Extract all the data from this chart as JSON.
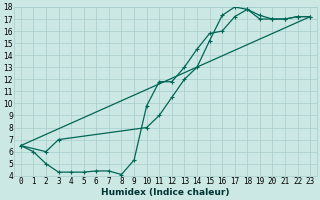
{
  "xlabel": "Humidex (Indice chaleur)",
  "xlim": [
    -0.5,
    23.5
  ],
  "ylim": [
    4,
    18
  ],
  "xticks": [
    0,
    1,
    2,
    3,
    4,
    5,
    6,
    7,
    8,
    9,
    10,
    11,
    12,
    13,
    14,
    15,
    16,
    17,
    18,
    19,
    20,
    21,
    22,
    23
  ],
  "yticks": [
    4,
    5,
    6,
    7,
    8,
    9,
    10,
    11,
    12,
    13,
    14,
    15,
    16,
    17,
    18
  ],
  "bg_color": "#cce8e4",
  "grid_color": "#a8cccc",
  "line_color": "#006655",
  "line1_x": [
    0,
    1,
    2,
    3,
    4,
    5,
    6,
    7,
    8,
    9,
    10,
    11,
    12,
    13,
    14,
    15,
    16,
    17,
    18,
    19,
    20,
    21,
    22,
    23
  ],
  "line1_y": [
    6.5,
    6.0,
    5.0,
    4.3,
    4.3,
    4.3,
    4.4,
    4.4,
    4.1,
    5.3,
    9.8,
    11.8,
    11.8,
    13.0,
    14.5,
    15.8,
    16.0,
    17.2,
    17.8,
    17.0,
    17.0,
    17.0,
    17.2,
    17.2
  ],
  "line2_x": [
    0,
    2,
    3,
    10,
    11,
    12,
    13,
    14,
    15,
    16,
    17,
    18,
    19,
    20,
    21,
    22,
    23
  ],
  "line2_y": [
    6.5,
    6.0,
    7.0,
    8.0,
    9.0,
    10.5,
    12.0,
    13.0,
    15.2,
    17.3,
    18.0,
    17.8,
    17.3,
    17.0,
    17.0,
    17.2,
    17.2
  ],
  "line3_x": [
    0,
    23
  ],
  "line3_y": [
    6.5,
    17.2
  ],
  "font_size_label": 6.5,
  "font_size_tick": 5.5,
  "lw": 0.9,
  "ms": 2.5
}
